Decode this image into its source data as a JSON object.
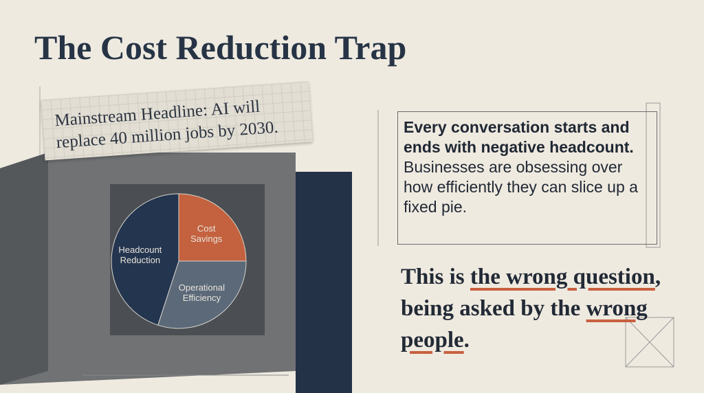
{
  "title": "The Cost Reduction Trap",
  "headline": "Mainstream Headline: AI will replace 40 million jobs by 2030.",
  "body": {
    "bold": "Every conversation starts and ends with negative headcount.",
    "rest": "Businesses are obsessing over how efficiently they can slice up a fixed pie."
  },
  "statement": {
    "parts": [
      "This is ",
      "the wrong question",
      ", being asked by the ",
      "wrong people",
      "."
    ]
  },
  "chart_data": {
    "type": "pie",
    "categories": [
      "Cost Savings",
      "Operational Efficiency",
      "Headcount Reduction"
    ],
    "values": [
      25,
      30,
      45
    ],
    "colors": [
      "#c4623f",
      "#5b6979",
      "#243550"
    ]
  }
}
